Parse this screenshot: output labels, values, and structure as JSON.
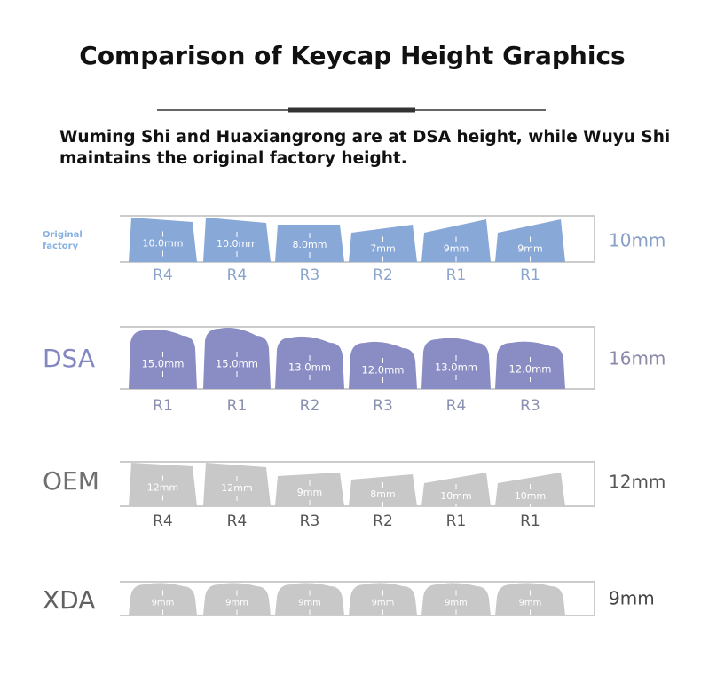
{
  "header": {
    "title": "Comparison of Keycap Height Graphics",
    "subtitle_lines": [
      "Wuming Shi and Huaxiangrong are at DSA height, while Wuyu Shi",
      "maintains the original factory height."
    ]
  },
  "profiles": [
    {
      "label_lines": [
        "Original",
        "factory"
      ],
      "height": "10mm",
      "keys": [
        {
          "size": "10.0mm",
          "row": "R4"
        },
        {
          "size": "10.0mm",
          "row": "R4"
        },
        {
          "size": "8.0mm",
          "row": "R3"
        },
        {
          "size": "7mm",
          "row": "R2"
        },
        {
          "size": "9mm",
          "row": "R1"
        },
        {
          "size": "9mm",
          "row": "R1"
        }
      ]
    },
    {
      "label_lines": [
        "DSA"
      ],
      "height": "16mm",
      "keys": [
        {
          "size": "15.0mm",
          "row": "R1"
        },
        {
          "size": "15.0mm",
          "row": "R1"
        },
        {
          "size": "13.0mm",
          "row": "R2"
        },
        {
          "size": "12.0mm",
          "row": "R3"
        },
        {
          "size": "13.0mm",
          "row": "R4"
        },
        {
          "size": "12.0mm",
          "row": "R3"
        }
      ]
    },
    {
      "label_lines": [
        "OEM"
      ],
      "height": "12mm",
      "keys": [
        {
          "size": "12mm",
          "row": "R4"
        },
        {
          "size": "12mm",
          "row": "R4"
        },
        {
          "size": "9mm",
          "row": "R3"
        },
        {
          "size": "8mm",
          "row": "R2"
        },
        {
          "size": "10mm",
          "row": "R1"
        },
        {
          "size": "10mm",
          "row": "R1"
        }
      ]
    },
    {
      "label_lines": [
        "XDA"
      ],
      "height": "9mm",
      "keys": [
        {
          "size": "9mm"
        },
        {
          "size": "9mm"
        },
        {
          "size": "9mm"
        },
        {
          "size": "9mm"
        },
        {
          "size": "9mm"
        },
        {
          "size": "9mm"
        }
      ]
    }
  ]
}
